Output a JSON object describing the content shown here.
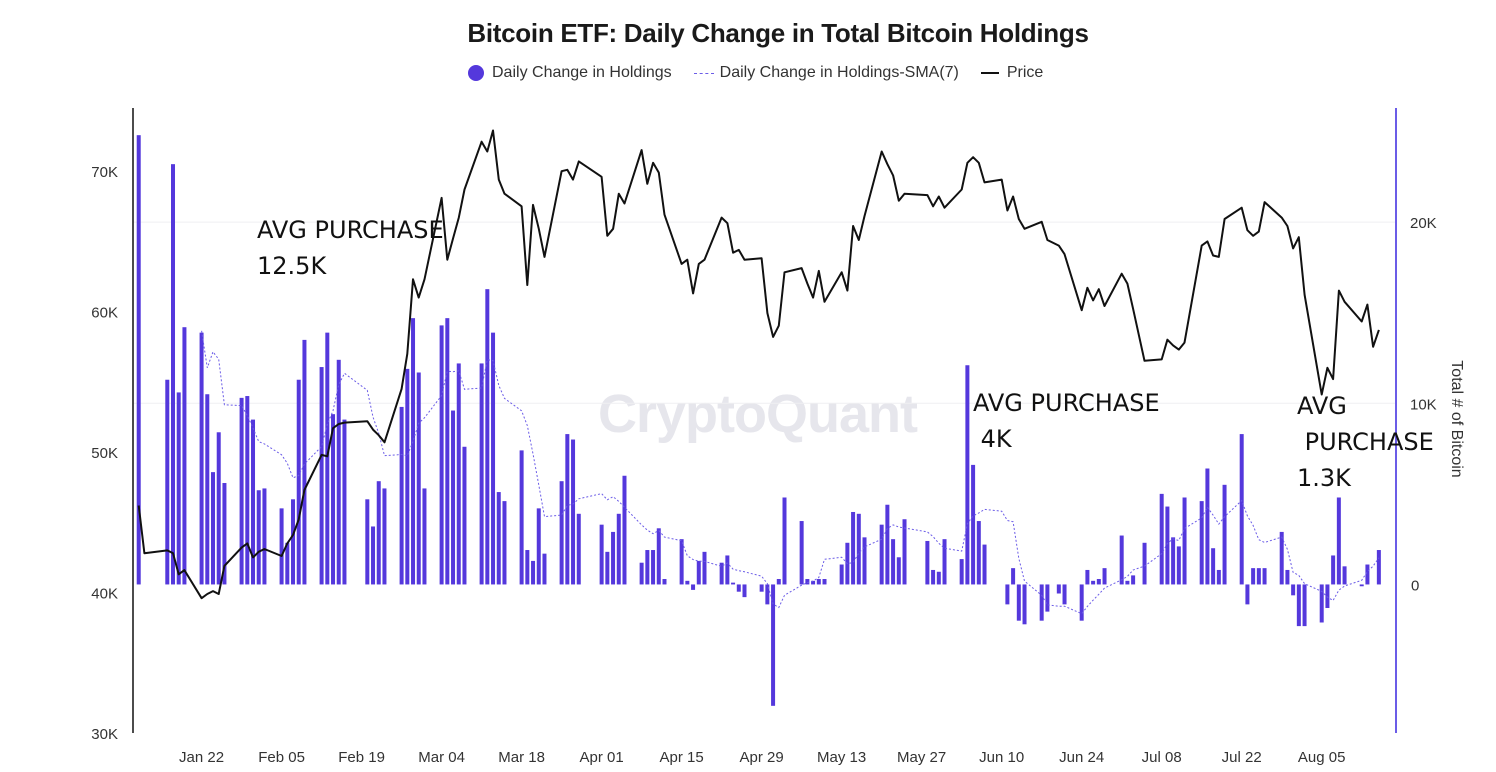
{
  "chart_data": {
    "type": "bar+line",
    "title": "Bitcoin ETF: Daily Change in Total Bitcoin Holdings",
    "legend": {
      "placement": "top-center",
      "entries": [
        "Daily Change in Holdings",
        "Daily Change in Holdings-SMA(7)",
        "Price"
      ]
    },
    "watermark": "CryptoQuant",
    "ylabel_right": "Total # of Bitcoin",
    "ylabel_left": "",
    "xlim": [
      "2024-01-10",
      "2024-08-18"
    ],
    "ylim_left": [
      30000,
      74500
    ],
    "ylim_right": [
      -8200,
      26300
    ],
    "x_ticks": [
      "Jan 22",
      "Feb 05",
      "Feb 19",
      "Mar 04",
      "Mar 18",
      "Apr 01",
      "Apr 15",
      "Apr 29",
      "May 13",
      "May 27",
      "Jun 10",
      "Jun 24",
      "Jul 08",
      "Jul 22",
      "Aug 05"
    ],
    "x_tick_dates": [
      "2024-01-22",
      "2024-02-05",
      "2024-02-19",
      "2024-03-04",
      "2024-03-18",
      "2024-04-01",
      "2024-04-15",
      "2024-04-29",
      "2024-05-13",
      "2024-05-27",
      "2024-06-10",
      "2024-06-24",
      "2024-07-08",
      "2024-07-22",
      "2024-08-05"
    ],
    "y_ticks_left": [
      {
        "value": 30000,
        "label": "30K"
      },
      {
        "value": 40000,
        "label": "40K"
      },
      {
        "value": 50000,
        "label": "50K"
      },
      {
        "value": 60000,
        "label": "60K"
      },
      {
        "value": 70000,
        "label": "70K"
      }
    ],
    "y_ticks_right": [
      {
        "value": 0,
        "label": "0"
      },
      {
        "value": 10000,
        "label": "10K"
      },
      {
        "value": 20000,
        "label": "20K"
      }
    ],
    "grid": "horizontal at right-axis ticks",
    "sma_window": 7,
    "colors": {
      "bars": "#5438dc",
      "sma": "#6b5ce7",
      "price": "#111111",
      "right_axis": "#6b5ce7"
    },
    "annotations": [
      {
        "text": "AVG PURCHASE\n12.5K"
      },
      {
        "text": "AVG PURCHASE\n 4K"
      },
      {
        "text": "AVG\n PURCHASE\n1.3K"
      }
    ],
    "dates": [
      "2024-01-11",
      "2024-01-12",
      "2024-01-16",
      "2024-01-17",
      "2024-01-18",
      "2024-01-19",
      "2024-01-22",
      "2024-01-23",
      "2024-01-24",
      "2024-01-25",
      "2024-01-26",
      "2024-01-29",
      "2024-01-30",
      "2024-01-31",
      "2024-02-01",
      "2024-02-02",
      "2024-02-05",
      "2024-02-06",
      "2024-02-07",
      "2024-02-08",
      "2024-02-09",
      "2024-02-12",
      "2024-02-13",
      "2024-02-14",
      "2024-02-15",
      "2024-02-16",
      "2024-02-20",
      "2024-02-21",
      "2024-02-22",
      "2024-02-23",
      "2024-02-26",
      "2024-02-27",
      "2024-02-28",
      "2024-02-29",
      "2024-03-01",
      "2024-03-04",
      "2024-03-05",
      "2024-03-06",
      "2024-03-07",
      "2024-03-08",
      "2024-03-11",
      "2024-03-12",
      "2024-03-13",
      "2024-03-14",
      "2024-03-15",
      "2024-03-18",
      "2024-03-19",
      "2024-03-20",
      "2024-03-21",
      "2024-03-22",
      "2024-03-25",
      "2024-03-26",
      "2024-03-27",
      "2024-03-28",
      "2024-04-01",
      "2024-04-02",
      "2024-04-03",
      "2024-04-04",
      "2024-04-05",
      "2024-04-08",
      "2024-04-09",
      "2024-04-10",
      "2024-04-11",
      "2024-04-12",
      "2024-04-15",
      "2024-04-16",
      "2024-04-17",
      "2024-04-18",
      "2024-04-19",
      "2024-04-22",
      "2024-04-23",
      "2024-04-24",
      "2024-04-25",
      "2024-04-26",
      "2024-04-29",
      "2024-04-30",
      "2024-05-01",
      "2024-05-02",
      "2024-05-03",
      "2024-05-06",
      "2024-05-07",
      "2024-05-08",
      "2024-05-09",
      "2024-05-10",
      "2024-05-13",
      "2024-05-14",
      "2024-05-15",
      "2024-05-16",
      "2024-05-17",
      "2024-05-20",
      "2024-05-21",
      "2024-05-22",
      "2024-05-23",
      "2024-05-24",
      "2024-05-28",
      "2024-05-29",
      "2024-05-30",
      "2024-05-31",
      "2024-06-03",
      "2024-06-04",
      "2024-06-05",
      "2024-06-06",
      "2024-06-07",
      "2024-06-10",
      "2024-06-11",
      "2024-06-12",
      "2024-06-13",
      "2024-06-14",
      "2024-06-17",
      "2024-06-18",
      "2024-06-20",
      "2024-06-21",
      "2024-06-24",
      "2024-06-25",
      "2024-06-26",
      "2024-06-27",
      "2024-06-28",
      "2024-07-01",
      "2024-07-02",
      "2024-07-03",
      "2024-07-05",
      "2024-07-08",
      "2024-07-09",
      "2024-07-10",
      "2024-07-11",
      "2024-07-12",
      "2024-07-15",
      "2024-07-16",
      "2024-07-17",
      "2024-07-18",
      "2024-07-19",
      "2024-07-22",
      "2024-07-23",
      "2024-07-24",
      "2024-07-25",
      "2024-07-26",
      "2024-07-29",
      "2024-07-30",
      "2024-07-31",
      "2024-08-01",
      "2024-08-02",
      "2024-08-05",
      "2024-08-06",
      "2024-08-07",
      "2024-08-08",
      "2024-08-09",
      "2024-08-12",
      "2024-08-13",
      "2024-08-14",
      "2024-08-15"
    ],
    "series": [
      {
        "name": "Daily Change in Holdings",
        "axis": "right",
        "type": "bar",
        "values": [
          24800,
          0,
          11300,
          23200,
          10600,
          14200,
          13900,
          10500,
          6200,
          8400,
          5600,
          10300,
          10400,
          9100,
          5200,
          5300,
          4200,
          2300,
          4700,
          11300,
          13500,
          12000,
          13900,
          9400,
          12400,
          9100,
          4700,
          3200,
          5700,
          5300,
          9800,
          11900,
          14700,
          11700,
          5300,
          14300,
          14700,
          9600,
          12200,
          7600,
          12200,
          16300,
          13900,
          5100,
          4600,
          7400,
          1900,
          1300,
          4200,
          1700,
          5700,
          8300,
          8000,
          3900,
          3300,
          1800,
          2900,
          3900,
          6000,
          1200,
          1900,
          1900,
          3100,
          300,
          2500,
          200,
          -300,
          1300,
          1800,
          1200,
          1600,
          100,
          -400,
          -700,
          -400,
          -1100,
          -6700,
          300,
          4800,
          3500,
          300,
          200,
          300,
          300,
          1100,
          2300,
          4000,
          3900,
          2600,
          3300,
          4400,
          2500,
          1500,
          3600,
          2400,
          800,
          700,
          2500,
          1400,
          12100,
          6600,
          3500,
          2200,
          0,
          -1100,
          900,
          -2000,
          -2200,
          -2000,
          -1500,
          -500,
          -1100,
          -2000,
          800,
          200,
          300,
          900,
          2700,
          200,
          500,
          2300,
          5000,
          4300,
          2600,
          2100,
          4800,
          4600,
          6400,
          2000,
          800,
          5500,
          8300,
          -1100,
          900,
          900,
          900,
          2900,
          800,
          -600,
          -2300,
          -2300,
          -2100,
          -1300,
          1600,
          4800,
          1000,
          -100,
          1100,
          0,
          1900
        ]
      },
      {
        "name": "Price",
        "axis": "left",
        "type": "line",
        "values": [
          46200,
          42800,
          43000,
          42800,
          41300,
          41600,
          39600,
          39900,
          40100,
          39900,
          41900,
          43200,
          43500,
          42500,
          42900,
          43100,
          42600,
          43500,
          44100,
          45200,
          47300,
          49800,
          49700,
          51700,
          52000,
          52100,
          52200,
          51600,
          51200,
          50700,
          54500,
          57000,
          62300,
          61000,
          62300,
          68100,
          63700,
          65200,
          66700,
          68700,
          72100,
          71400,
          72900,
          69400,
          68400,
          67500,
          61900,
          67600,
          65900,
          63900,
          70000,
          70100,
          69400,
          70700,
          69600,
          65400,
          65900,
          68400,
          67700,
          71500,
          69100,
          70600,
          69900,
          66900,
          63400,
          63700,
          61300,
          63400,
          63700,
          66700,
          66300,
          64200,
          64400,
          63700,
          63800,
          59900,
          58200,
          59000,
          62800,
          63100,
          62000,
          61000,
          62900,
          60700,
          62800,
          61500,
          66100,
          65100,
          66800,
          71400,
          70500,
          69700,
          67900,
          68400,
          68300,
          67500,
          68200,
          67400,
          68700,
          70600,
          71000,
          70600,
          69200,
          69400,
          67200,
          68200,
          66600,
          65900,
          66400,
          65100,
          64700,
          64100,
          60100,
          61700,
          60800,
          61600,
          60400,
          62700,
          62000,
          60200,
          56500,
          56600,
          58000,
          57600,
          57300,
          57800,
          64700,
          65000,
          64000,
          63900,
          66600,
          67400,
          65800,
          65400,
          65700,
          67800,
          66700,
          66100,
          64500,
          65300,
          61200,
          54100,
          56000,
          55200,
          61500,
          60700,
          59300,
          60500,
          57500,
          58700
        ]
      }
    ]
  }
}
